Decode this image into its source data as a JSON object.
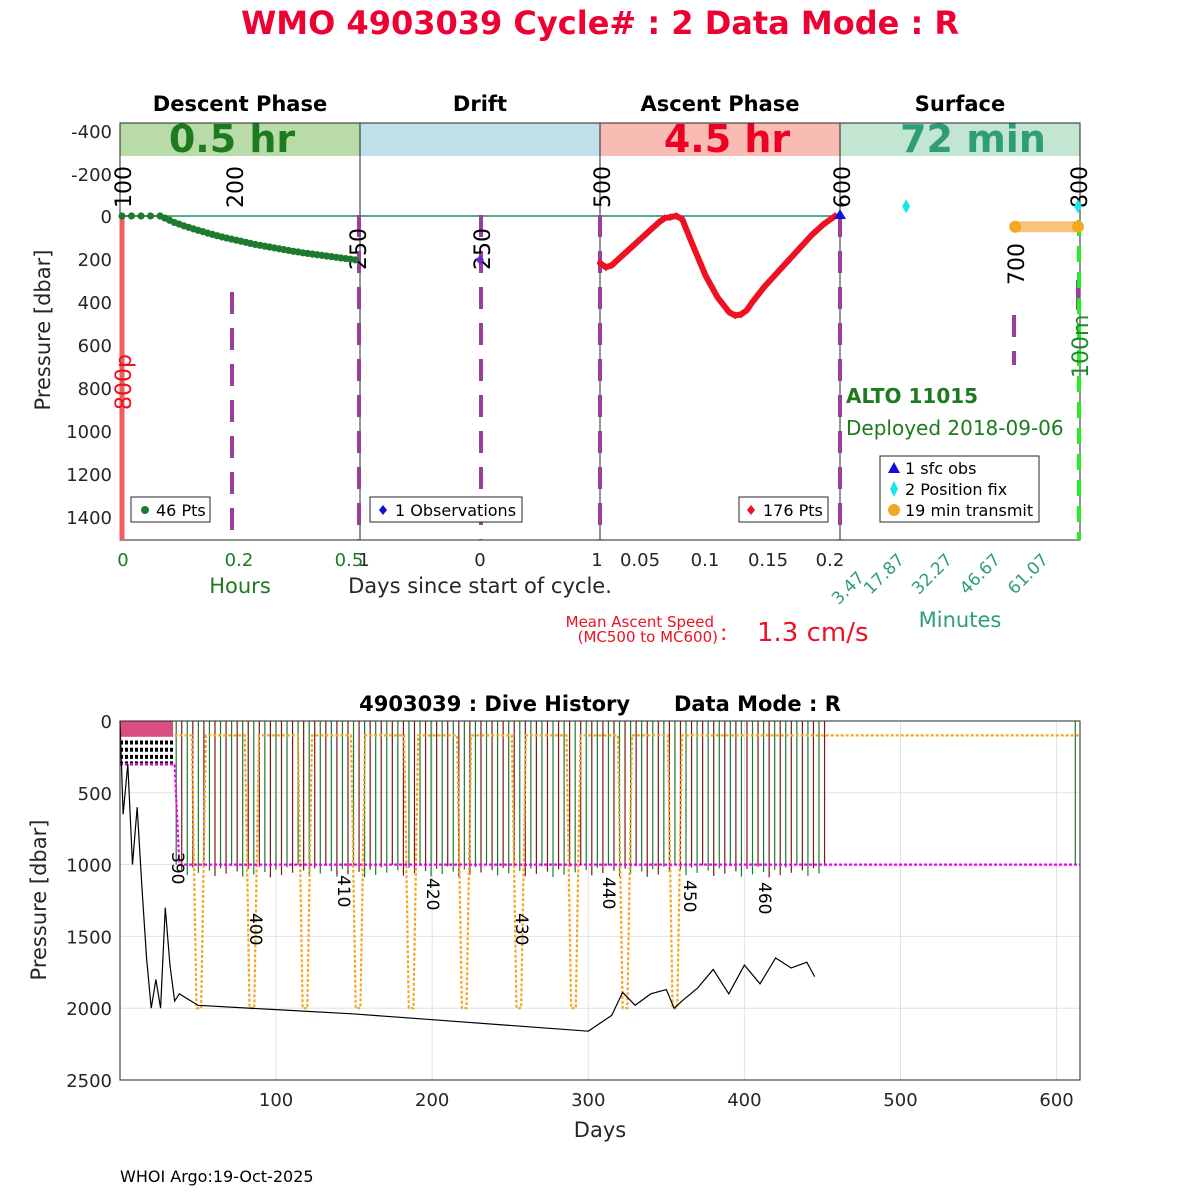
{
  "figure": {
    "title": "WMO 4903039   Cycle# : 2   Data Mode : R",
    "footer": "WHOI Argo:19-Oct-2025"
  },
  "colors": {
    "title_red": "#ee0033",
    "descent_band": "#b9dba7",
    "descent_text": "#1e7a1e",
    "drift_band": "#bfe0ea",
    "ascent_band": "#f9bcb5",
    "ascent_text": "#ee0022",
    "surface_band": "#c2e6d2",
    "surface_text": "#2e9e75",
    "descent_green": "#1e7a2e",
    "ascent_red": "#ee1122",
    "purple": "#9a3f9c",
    "orange": "#f5a623",
    "cyan": "#19e6ec",
    "blue": "#1010dd",
    "magenta": "#f000f0",
    "bright_green": "#22ee22",
    "dark_red": "#7a1a1a"
  },
  "top": {
    "phases": [
      {
        "name": "Descent Phase",
        "duration": "0.5 hr"
      },
      {
        "name": "Drift",
        "duration": ""
      },
      {
        "name": "Ascent Phase",
        "duration": "4.5 hr"
      },
      {
        "name": "Surface",
        "duration": "72 min"
      }
    ],
    "ylabel": "Pressure [dbar]",
    "yticks": [
      "-400",
      "-200",
      "0",
      "200",
      "400",
      "600",
      "800",
      "1000",
      "1200",
      "1400"
    ],
    "panel_ticks": {
      "descent": [
        "0",
        "0.2",
        "0.5"
      ],
      "drift": [
        "1",
        "0",
        "1"
      ],
      "ascent": [
        "0.05",
        "0.1",
        "0.15",
        "0.2"
      ],
      "surface": [
        "3.47",
        "17.87",
        "32.27",
        "46.67",
        "61.07"
      ]
    },
    "hours_label": "Hours",
    "days_label": "Days since start of cycle.",
    "minutes_label": "Minutes",
    "legends": {
      "descent": "46 Pts",
      "drift": "1 Observations",
      "ascent": "176 Pts",
      "surface": [
        "1 sfc obs",
        "2 Position fix",
        "19 min transmit"
      ]
    },
    "mission_labels": [
      "100",
      "200",
      "250",
      "250",
      "500",
      "600",
      "700",
      "800",
      "800p",
      "100m"
    ],
    "float_id": "ALTO 11015",
    "deployed": "Deployed 2018-09-06",
    "ascent_speed_label_1": "Mean Ascent Speed",
    "ascent_speed_label_2": "(MC500 to MC600)",
    "ascent_speed_colon": ":",
    "ascent_speed_value": "1.3 cm/s"
  },
  "chart_data": [
    {
      "type": "scatter",
      "title": "Descent Phase",
      "xlabel": "Hours",
      "ylabel": "Pressure [dbar]",
      "xlim": [
        0,
        0.5
      ],
      "ylim": [
        -400,
        1500
      ],
      "series": [
        {
          "name": "46 Pts",
          "x": [
            0,
            0.02,
            0.04,
            0.06,
            0.08,
            0.09,
            0.1,
            0.11,
            0.12,
            0.13,
            0.14,
            0.15,
            0.16,
            0.17,
            0.18,
            0.19,
            0.2,
            0.21,
            0.22,
            0.23,
            0.24,
            0.25,
            0.26,
            0.27,
            0.28,
            0.29,
            0.3,
            0.31,
            0.32,
            0.33,
            0.34,
            0.35,
            0.36,
            0.37,
            0.38,
            0.39,
            0.4,
            0.41,
            0.42,
            0.43,
            0.44,
            0.45,
            0.46,
            0.47,
            0.48,
            0.49
          ],
          "y": [
            0,
            0,
            0,
            0,
            0,
            10,
            20,
            30,
            38,
            46,
            53,
            60,
            67,
            73,
            80,
            86,
            92,
            98,
            103,
            108,
            113,
            118,
            123,
            128,
            133,
            137,
            141,
            145,
            149,
            153,
            157,
            161,
            165,
            168,
            172,
            175,
            178,
            181,
            184,
            187,
            190,
            193,
            196,
            199,
            202,
            205
          ]
        }
      ]
    },
    {
      "type": "scatter",
      "title": "Drift",
      "xlabel": "Days since start of cycle.",
      "xlim": [
        -1,
        1
      ],
      "ylim": [
        -400,
        1500
      ],
      "series": [
        {
          "name": "1 Observations",
          "x": [
            0
          ],
          "y": [
            205
          ]
        }
      ]
    },
    {
      "type": "line",
      "title": "Ascent Phase",
      "xlim": [
        0,
        0.2
      ],
      "ylim": [
        -400,
        1500
      ],
      "series": [
        {
          "name": "176 Pts",
          "x": [
            0,
            0.005,
            0.01,
            0.02,
            0.03,
            0.04,
            0.05,
            0.055,
            0.06,
            0.065,
            0.07,
            0.08,
            0.09,
            0.1,
            0.11,
            0.115,
            0.12,
            0.125,
            0.13,
            0.14,
            0.15,
            0.16,
            0.17,
            0.18,
            0.19,
            0.2
          ],
          "y": [
            220,
            240,
            230,
            180,
            130,
            80,
            30,
            10,
            5,
            0,
            15,
            150,
            280,
            380,
            450,
            465,
            460,
            440,
            400,
            330,
            270,
            210,
            150,
            90,
            40,
            0
          ]
        }
      ]
    },
    {
      "type": "scatter",
      "title": "Surface",
      "xlabel": "Minutes",
      "xlim": [
        0,
        72
      ],
      "ylim": [
        -400,
        1500
      ],
      "series": [
        {
          "name": "1 sfc obs",
          "x": [
            0
          ],
          "y": [
            0
          ]
        },
        {
          "name": "2 Position fix",
          "x": [
            20,
            72
          ],
          "y": [
            -45,
            -45
          ]
        },
        {
          "name": "19 min transmit",
          "x": [
            53,
            72
          ],
          "y": [
            50,
            50
          ]
        }
      ]
    },
    {
      "type": "line",
      "title": "4903039 : Dive History      Data Mode : R",
      "xlabel": "Days",
      "ylabel": "Pressure [dbar]",
      "xlim": [
        0,
        615
      ],
      "ylim": [
        0,
        2500
      ],
      "xticks": [
        "100",
        "200",
        "300",
        "400",
        "500",
        "600"
      ],
      "yticks": [
        "0",
        "500",
        "1000",
        "1500",
        "2000",
        "2500"
      ],
      "cycle_labels": [
        "390",
        "400",
        "410",
        "420",
        "430",
        "440",
        "450",
        "460"
      ],
      "series": [
        {
          "name": "bottom depth",
          "x": [
            0,
            2,
            5,
            8,
            11,
            14,
            17,
            20,
            23,
            26,
            29,
            32,
            35,
            38,
            50,
            100,
            150,
            200,
            250,
            300,
            315,
            322,
            330,
            340,
            350,
            355,
            360,
            370,
            380,
            390,
            400,
            410,
            420,
            430,
            440,
            445
          ],
          "y": [
            0,
            650,
            300,
            1000,
            600,
            1150,
            1650,
            2000,
            1800,
            2000,
            1300,
            1700,
            1950,
            1900,
            1980,
            2010,
            2040,
            2080,
            2120,
            2160,
            2050,
            1890,
            1980,
            1900,
            1870,
            2000,
            1950,
            1860,
            1730,
            1900,
            1700,
            1830,
            1650,
            1720,
            1680,
            1780
          ]
        },
        {
          "name": "park depth",
          "x": [
            0,
            35,
            38,
            615
          ],
          "y": [
            300,
            300,
            1000,
            1000
          ]
        },
        {
          "name": "profile depth",
          "x": [
            35,
            615
          ],
          "y": [
            100,
            100
          ]
        }
      ]
    }
  ]
}
